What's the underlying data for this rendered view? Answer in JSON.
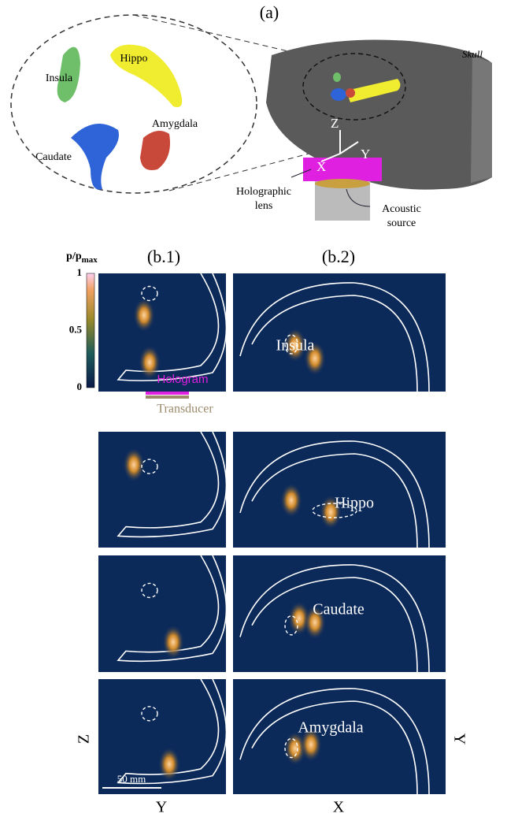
{
  "panel_a": {
    "label": "(a)",
    "structures": [
      "Insula",
      "Hippo",
      "Caudate",
      "Amygdala"
    ],
    "skull": "Skull",
    "axes": [
      "Z",
      "Y",
      "X"
    ],
    "lens": [
      "Holographic",
      "lens"
    ],
    "source": [
      "Acoustic",
      "source"
    ]
  },
  "panel_b": {
    "col_labels": [
      "(b.1)",
      "(b.2)"
    ],
    "colorbar": {
      "title": "p/p",
      "subscript": "max",
      "ticks": [
        1,
        0.5,
        0
      ]
    },
    "hologram": "Hologram",
    "transducer": "Transducer",
    "targets": [
      "Insula",
      "Hippo",
      "Caudate",
      "Amygdala"
    ],
    "left_axis": "Z",
    "right_axis": "Y",
    "x_labels": [
      "Y",
      "X"
    ],
    "scale_bar": "50 mm"
  }
}
